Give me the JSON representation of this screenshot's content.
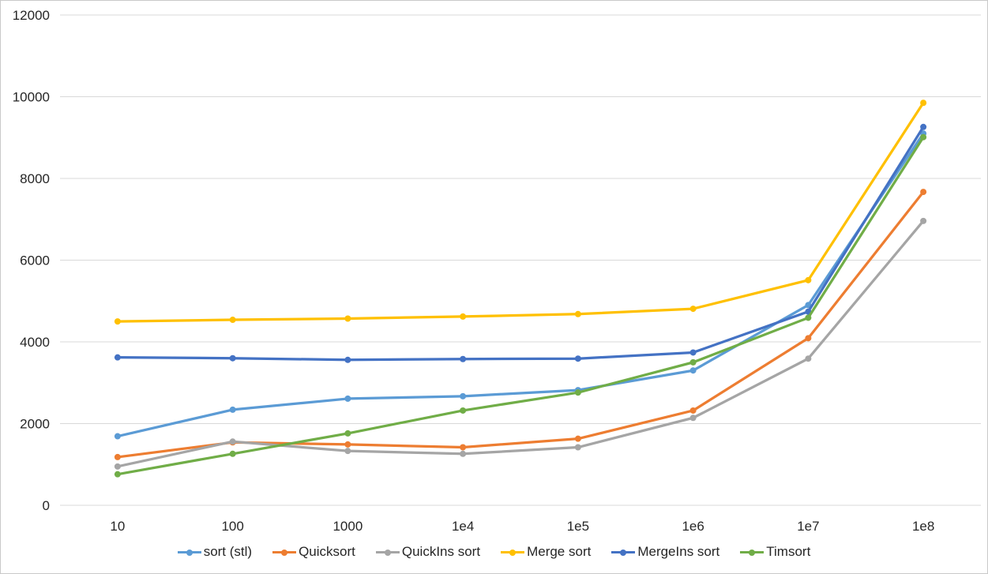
{
  "page": {
    "background_color": "#ffffff",
    "border_color": "#c9c9c9"
  },
  "chart_data": {
    "type": "line",
    "title": "",
    "xlabel": "",
    "ylabel": "",
    "categories": [
      "10",
      "100",
      "1000",
      "1e4",
      "1e5",
      "1e6",
      "1e7",
      "1e8"
    ],
    "series": [
      {
        "name": "sort (stl)",
        "color": "#5B9BD5",
        "values": [
          1690,
          2340,
          2610,
          2670,
          2820,
          3300,
          4900,
          9100
        ]
      },
      {
        "name": "Quicksort",
        "color": "#ED7D31",
        "values": [
          1180,
          1540,
          1490,
          1420,
          1630,
          2320,
          4090,
          7670
        ]
      },
      {
        "name": "QuickIns sort",
        "color": "#A5A5A5",
        "values": [
          950,
          1560,
          1330,
          1260,
          1420,
          2140,
          3590,
          6960
        ]
      },
      {
        "name": "Merge sort",
        "color": "#FFC000",
        "values": [
          4500,
          4540,
          4570,
          4620,
          4680,
          4810,
          5510,
          9850
        ]
      },
      {
        "name": "MergeIns sort",
        "color": "#4472C4",
        "values": [
          3620,
          3600,
          3560,
          3580,
          3590,
          3740,
          4740,
          9260
        ]
      },
      {
        "name": "Timsort",
        "color": "#70AD47",
        "values": [
          760,
          1260,
          1760,
          2320,
          2760,
          3500,
          4590,
          9010
        ]
      }
    ],
    "ylim": [
      0,
      12000
    ],
    "y_tick_step": 2000,
    "y_tick_labels": [
      "0",
      "2000",
      "4000",
      "6000",
      "8000",
      "10000",
      "12000"
    ],
    "grid": "horizontal",
    "gridline_color": "#d9d9d9",
    "axis_text_color": "#262626",
    "marker": "circle",
    "legend_position": "bottom"
  }
}
